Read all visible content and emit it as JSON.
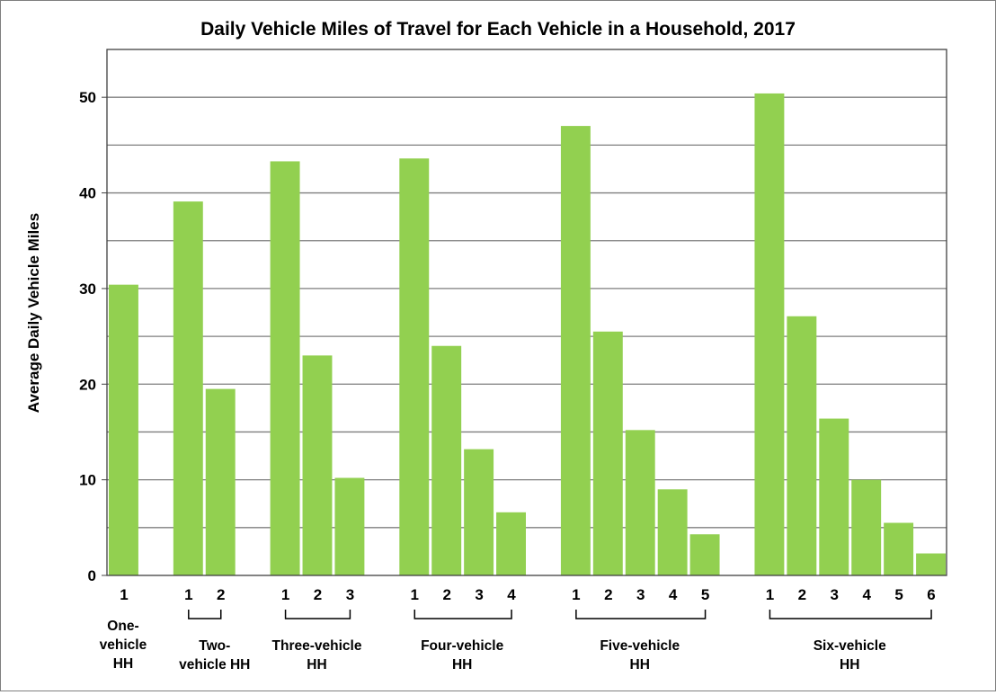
{
  "chart_data": {
    "type": "bar",
    "title": "Daily Vehicle Miles of Travel for Each Vehicle in a Household, 2017",
    "xlabel": "",
    "ylabel": "Average Daily Vehicle Miles",
    "ylim": [
      0,
      55
    ],
    "yticks": [
      0,
      10,
      20,
      30,
      40,
      50
    ],
    "grid": true,
    "bar_color": "#92D050",
    "groups": [
      {
        "label": [
          "One-",
          "vehicle",
          "HH"
        ],
        "categories": [
          "1"
        ],
        "values": [
          30.4
        ]
      },
      {
        "label": [
          "Two-",
          "vehicle HH"
        ],
        "categories": [
          "1",
          "2"
        ],
        "values": [
          39.1,
          19.5
        ]
      },
      {
        "label": [
          "Three-vehicle",
          "HH"
        ],
        "categories": [
          "1",
          "2",
          "3"
        ],
        "values": [
          43.3,
          23.0,
          10.2
        ]
      },
      {
        "label": [
          "Four-vehicle",
          "HH"
        ],
        "categories": [
          "1",
          "2",
          "3",
          "4"
        ],
        "values": [
          43.6,
          24.0,
          13.2,
          6.6
        ]
      },
      {
        "label": [
          "Five-vehicle",
          "HH"
        ],
        "categories": [
          "1",
          "2",
          "3",
          "4",
          "5"
        ],
        "values": [
          47.0,
          25.5,
          15.2,
          9.0,
          4.3
        ]
      },
      {
        "label": [
          "Six-vehicle",
          "HH"
        ],
        "categories": [
          "1",
          "2",
          "3",
          "4",
          "5",
          "6"
        ],
        "values": [
          50.4,
          27.1,
          16.4,
          10.0,
          5.5,
          2.3
        ]
      }
    ]
  }
}
